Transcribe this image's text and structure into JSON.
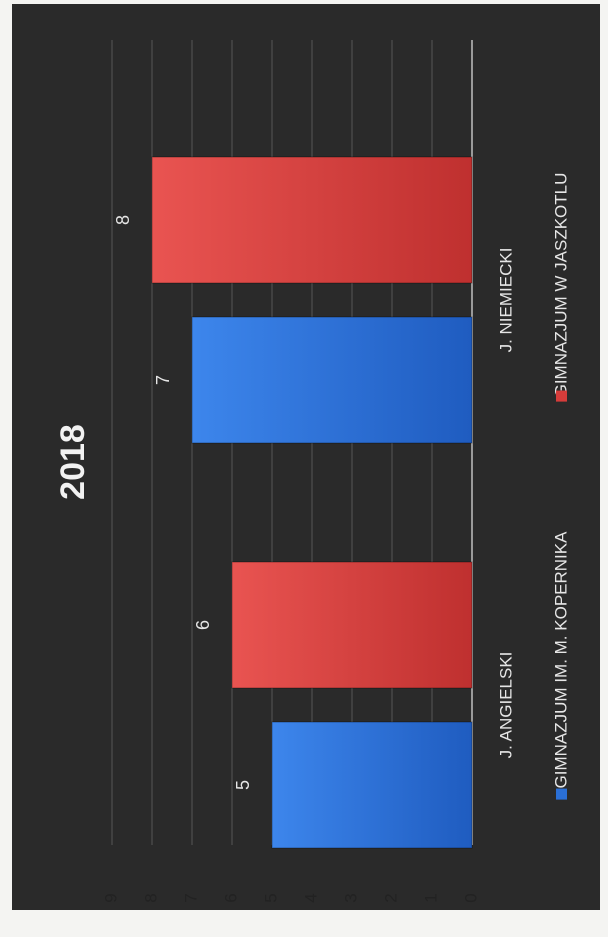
{
  "chart_data": {
    "type": "bar",
    "title": "2018",
    "categories": [
      "J. ANGIELSKI",
      "J. NIEMIECKI"
    ],
    "series": [
      {
        "name": "GIMNAZJUM IM. M. KOPERNIKA",
        "values": [
          5,
          7
        ]
      },
      {
        "name": "GIMNAZJUM W JASZKOTLU",
        "values": [
          6,
          8
        ]
      }
    ],
    "ylim": [
      0,
      9
    ],
    "yticks": [
      "0",
      "1",
      "2",
      "3",
      "4",
      "5",
      "6",
      "7",
      "8",
      "9"
    ],
    "grid": true,
    "legend": "bottom",
    "orientation": "rotated",
    "colors": {
      "background": "#2b2b2b",
      "series1": "#2a6fd6",
      "series2": "#d63c3a",
      "text": "#e6e6e6",
      "grid": "#555555"
    }
  }
}
